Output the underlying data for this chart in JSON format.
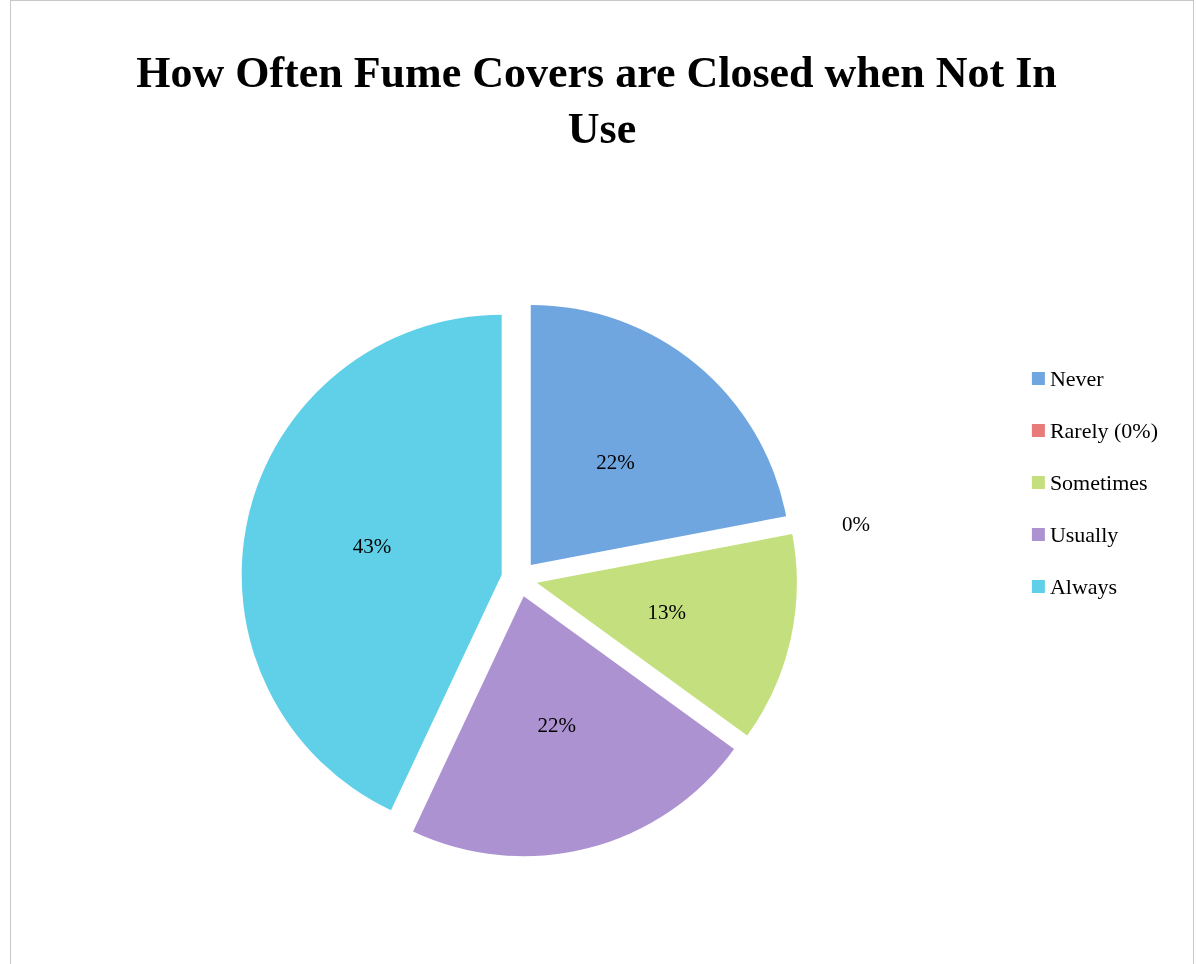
{
  "chart_data": {
    "type": "pie",
    "title": "How Often Fume Covers are Closed when Not In Use",
    "categories": [
      "Never",
      "Rarely (0%)",
      "Sometimes",
      "Usually",
      "Always"
    ],
    "values": [
      22,
      0,
      13,
      22,
      43
    ],
    "colors": [
      "#6fa6e0",
      "#e87a7a",
      "#c4e07e",
      "#ad92d2",
      "#5fd0e8"
    ],
    "value_labels": [
      "22%",
      "0%",
      "13%",
      "22%",
      "43%"
    ],
    "legend": "right"
  }
}
